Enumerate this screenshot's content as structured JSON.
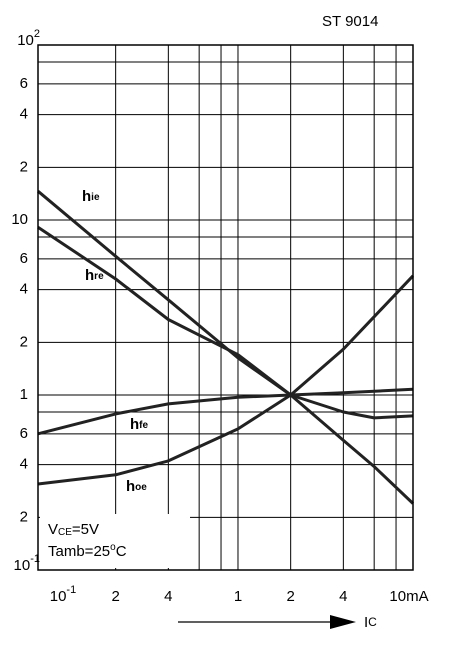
{
  "chart_data": {
    "type": "line",
    "title": "ST 9014",
    "log_x": true,
    "log_y": true,
    "grid": true,
    "xlim": [
      0.072,
      10
    ],
    "ylim": [
      0.1,
      100
    ],
    "xticks": [
      {
        "value": 0.1,
        "label": "10",
        "sup": "-1"
      },
      {
        "value": 0.2,
        "label": "2"
      },
      {
        "value": 0.4,
        "label": "4"
      },
      1,
      2,
      4,
      {
        "value": 10,
        "label": "10mA"
      }
    ],
    "xgrid": [
      0.2,
      0.4,
      0.6,
      0.8,
      1,
      2,
      4,
      6,
      8,
      10
    ],
    "yticks": [
      {
        "value": 100,
        "label": "10",
        "sup": "2"
      },
      {
        "value": 60,
        "label": "6"
      },
      {
        "value": 40,
        "label": "4"
      },
      {
        "value": 20,
        "label": "2"
      },
      10,
      6,
      4,
      2,
      1,
      {
        "value": 0.6,
        "label": "6"
      },
      {
        "value": 0.4,
        "label": "4"
      },
      {
        "value": 0.2,
        "label": "2"
      },
      {
        "value": 0.1,
        "label": "10",
        "sup": "-1"
      }
    ],
    "ygrid": [
      100,
      80,
      60,
      40,
      20,
      10,
      8,
      6,
      4,
      2,
      1,
      0.8,
      0.6,
      0.4,
      0.2,
      0.1
    ],
    "x": [
      0.072,
      0.2,
      0.4,
      1,
      2,
      4,
      6,
      10
    ],
    "color": "#222222",
    "series": [
      {
        "name": "h",
        "subscript": "ie",
        "values": [
          14.6,
          6.2,
          3.5,
          1.63,
          1.0,
          0.55,
          0.39,
          0.24
        ]
      },
      {
        "name": "h",
        "subscript": "re",
        "values": [
          9.1,
          4.6,
          2.7,
          1.7,
          1.0,
          0.8,
          0.74,
          0.76
        ]
      },
      {
        "name": "h",
        "subscript": "fe",
        "values": [
          0.6,
          0.78,
          0.89,
          0.97,
          1.0,
          1.03,
          1.05,
          1.08
        ]
      },
      {
        "name": "h",
        "subscript": "oe",
        "values": [
          0.31,
          0.35,
          0.42,
          0.64,
          1.0,
          1.83,
          2.8,
          4.8
        ]
      }
    ],
    "annotations": [
      {
        "text": "V",
        "sub": "CE",
        "rest": "=5V"
      },
      {
        "text": "Tamb=25",
        "sup": "o",
        "rest": "C"
      }
    ],
    "xlabel": {
      "text": "I",
      "sub": "C"
    }
  }
}
